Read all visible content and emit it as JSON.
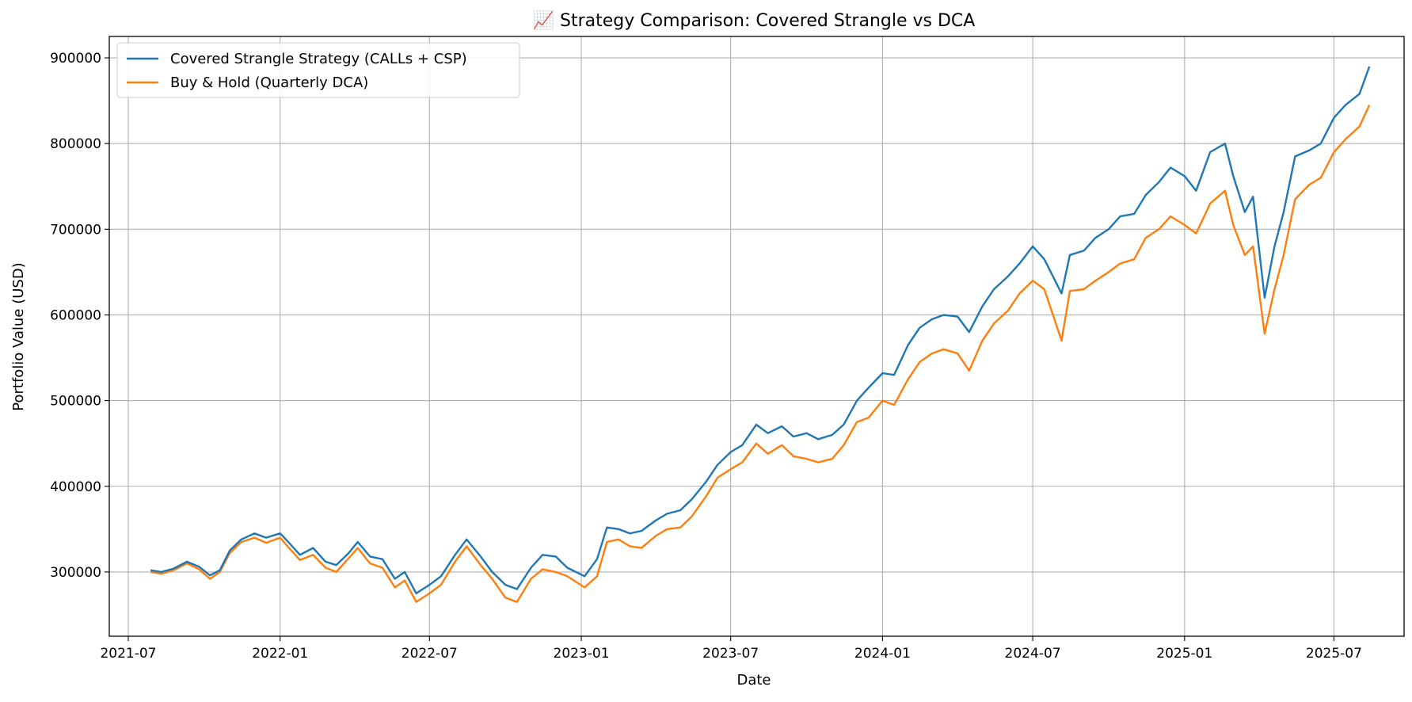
{
  "chart_data": {
    "type": "line",
    "title": "📈 Strategy Comparison: Covered Strangle vs DCA",
    "xlabel": "Date",
    "ylabel": "Portfolio Value (USD)",
    "x_ticks": [
      "2021-07",
      "2022-01",
      "2022-07",
      "2023-01",
      "2023-07",
      "2024-01",
      "2024-07",
      "2025-01",
      "2025-07"
    ],
    "y_ticks": [
      "300000",
      "400000",
      "500000",
      "600000",
      "700000",
      "800000",
      "900000"
    ],
    "xlim": [
      "2021-06-08",
      "2025-09-24"
    ],
    "ylim": [
      225000,
      925000
    ],
    "grid": true,
    "legend_position": "upper-left",
    "series": [
      {
        "name": "Covered Strangle Strategy (CALLs + CSP)",
        "color": "#1f77b4",
        "points": [
          [
            "2021-07-28",
            302000
          ],
          [
            "2021-08-10",
            300000
          ],
          [
            "2021-08-25",
            304000
          ],
          [
            "2021-09-10",
            312000
          ],
          [
            "2021-09-25",
            306000
          ],
          [
            "2021-10-08",
            296000
          ],
          [
            "2021-10-20",
            302000
          ],
          [
            "2021-11-01",
            325000
          ],
          [
            "2021-11-15",
            338000
          ],
          [
            "2021-12-01",
            345000
          ],
          [
            "2021-12-15",
            340000
          ],
          [
            "2022-01-01",
            345000
          ],
          [
            "2022-01-10",
            336000
          ],
          [
            "2022-01-25",
            320000
          ],
          [
            "2022-02-10",
            328000
          ],
          [
            "2022-02-25",
            312000
          ],
          [
            "2022-03-10",
            308000
          ],
          [
            "2022-03-25",
            322000
          ],
          [
            "2022-04-05",
            335000
          ],
          [
            "2022-04-20",
            318000
          ],
          [
            "2022-05-05",
            315000
          ],
          [
            "2022-05-20",
            292000
          ],
          [
            "2022-06-01",
            300000
          ],
          [
            "2022-06-15",
            275000
          ],
          [
            "2022-07-01",
            285000
          ],
          [
            "2022-07-15",
            295000
          ],
          [
            "2022-08-01",
            320000
          ],
          [
            "2022-08-15",
            338000
          ],
          [
            "2022-09-01",
            318000
          ],
          [
            "2022-09-15",
            300000
          ],
          [
            "2022-10-01",
            285000
          ],
          [
            "2022-10-15",
            280000
          ],
          [
            "2022-11-01",
            305000
          ],
          [
            "2022-11-15",
            320000
          ],
          [
            "2022-12-01",
            318000
          ],
          [
            "2022-12-15",
            305000
          ],
          [
            "2023-01-05",
            295000
          ],
          [
            "2023-01-20",
            315000
          ],
          [
            "2023-02-01",
            352000
          ],
          [
            "2023-02-15",
            350000
          ],
          [
            "2023-03-01",
            345000
          ],
          [
            "2023-03-15",
            348000
          ],
          [
            "2023-04-01",
            360000
          ],
          [
            "2023-04-15",
            368000
          ],
          [
            "2023-05-01",
            372000
          ],
          [
            "2023-05-15",
            385000
          ],
          [
            "2023-06-01",
            405000
          ],
          [
            "2023-06-15",
            425000
          ],
          [
            "2023-07-01",
            440000
          ],
          [
            "2023-07-15",
            448000
          ],
          [
            "2023-08-01",
            472000
          ],
          [
            "2023-08-15",
            462000
          ],
          [
            "2023-09-01",
            470000
          ],
          [
            "2023-09-15",
            458000
          ],
          [
            "2023-10-01",
            462000
          ],
          [
            "2023-10-15",
            455000
          ],
          [
            "2023-11-01",
            460000
          ],
          [
            "2023-11-15",
            472000
          ],
          [
            "2023-12-01",
            500000
          ],
          [
            "2023-12-15",
            515000
          ],
          [
            "2024-01-01",
            532000
          ],
          [
            "2024-01-15",
            530000
          ],
          [
            "2024-02-01",
            565000
          ],
          [
            "2024-02-15",
            585000
          ],
          [
            "2024-03-01",
            595000
          ],
          [
            "2024-03-15",
            600000
          ],
          [
            "2024-04-01",
            598000
          ],
          [
            "2024-04-15",
            580000
          ],
          [
            "2024-05-01",
            610000
          ],
          [
            "2024-05-15",
            630000
          ],
          [
            "2024-06-01",
            645000
          ],
          [
            "2024-06-15",
            660000
          ],
          [
            "2024-07-01",
            680000
          ],
          [
            "2024-07-15",
            665000
          ],
          [
            "2024-08-05",
            625000
          ],
          [
            "2024-08-15",
            670000
          ],
          [
            "2024-09-01",
            675000
          ],
          [
            "2024-09-15",
            690000
          ],
          [
            "2024-10-01",
            700000
          ],
          [
            "2024-10-15",
            715000
          ],
          [
            "2024-11-01",
            718000
          ],
          [
            "2024-11-15",
            740000
          ],
          [
            "2024-12-01",
            755000
          ],
          [
            "2024-12-15",
            772000
          ],
          [
            "2025-01-01",
            762000
          ],
          [
            "2025-01-15",
            745000
          ],
          [
            "2025-02-01",
            790000
          ],
          [
            "2025-02-19",
            800000
          ],
          [
            "2025-03-01",
            762000
          ],
          [
            "2025-03-15",
            720000
          ],
          [
            "2025-03-25",
            738000
          ],
          [
            "2025-04-08",
            620000
          ],
          [
            "2025-04-20",
            680000
          ],
          [
            "2025-05-01",
            720000
          ],
          [
            "2025-05-15",
            785000
          ],
          [
            "2025-06-01",
            792000
          ],
          [
            "2025-06-15",
            800000
          ],
          [
            "2025-07-01",
            830000
          ],
          [
            "2025-07-15",
            845000
          ],
          [
            "2025-08-01",
            858000
          ],
          [
            "2025-08-13",
            890000
          ]
        ]
      },
      {
        "name": "Buy & Hold (Quarterly DCA)",
        "color": "#ff7f0e",
        "points": [
          [
            "2021-07-28",
            300000
          ],
          [
            "2021-08-10",
            298000
          ],
          [
            "2021-08-25",
            302000
          ],
          [
            "2021-09-10",
            310000
          ],
          [
            "2021-09-25",
            303000
          ],
          [
            "2021-10-08",
            292000
          ],
          [
            "2021-10-20",
            300000
          ],
          [
            "2021-11-01",
            322000
          ],
          [
            "2021-11-15",
            335000
          ],
          [
            "2021-12-01",
            340000
          ],
          [
            "2021-12-15",
            334000
          ],
          [
            "2022-01-01",
            340000
          ],
          [
            "2022-01-10",
            330000
          ],
          [
            "2022-01-25",
            314000
          ],
          [
            "2022-02-10",
            320000
          ],
          [
            "2022-02-25",
            305000
          ],
          [
            "2022-03-10",
            300000
          ],
          [
            "2022-03-25",
            316000
          ],
          [
            "2022-04-05",
            328000
          ],
          [
            "2022-04-20",
            310000
          ],
          [
            "2022-05-05",
            305000
          ],
          [
            "2022-05-20",
            282000
          ],
          [
            "2022-06-01",
            290000
          ],
          [
            "2022-06-15",
            265000
          ],
          [
            "2022-07-01",
            275000
          ],
          [
            "2022-07-15",
            285000
          ],
          [
            "2022-08-01",
            312000
          ],
          [
            "2022-08-15",
            330000
          ],
          [
            "2022-09-01",
            308000
          ],
          [
            "2022-09-15",
            292000
          ],
          [
            "2022-10-01",
            270000
          ],
          [
            "2022-10-15",
            265000
          ],
          [
            "2022-11-01",
            292000
          ],
          [
            "2022-11-15",
            303000
          ],
          [
            "2022-12-01",
            300000
          ],
          [
            "2022-12-15",
            295000
          ],
          [
            "2023-01-05",
            282000
          ],
          [
            "2023-01-20",
            295000
          ],
          [
            "2023-02-01",
            335000
          ],
          [
            "2023-02-15",
            338000
          ],
          [
            "2023-03-01",
            330000
          ],
          [
            "2023-03-15",
            328000
          ],
          [
            "2023-04-01",
            342000
          ],
          [
            "2023-04-15",
            350000
          ],
          [
            "2023-05-01",
            352000
          ],
          [
            "2023-05-15",
            365000
          ],
          [
            "2023-06-01",
            388000
          ],
          [
            "2023-06-15",
            410000
          ],
          [
            "2023-07-01",
            420000
          ],
          [
            "2023-07-15",
            428000
          ],
          [
            "2023-08-01",
            450000
          ],
          [
            "2023-08-15",
            438000
          ],
          [
            "2023-09-01",
            448000
          ],
          [
            "2023-09-15",
            435000
          ],
          [
            "2023-10-01",
            432000
          ],
          [
            "2023-10-15",
            428000
          ],
          [
            "2023-11-01",
            432000
          ],
          [
            "2023-11-15",
            448000
          ],
          [
            "2023-12-01",
            475000
          ],
          [
            "2023-12-15",
            480000
          ],
          [
            "2024-01-01",
            500000
          ],
          [
            "2024-01-15",
            495000
          ],
          [
            "2024-02-01",
            525000
          ],
          [
            "2024-02-15",
            545000
          ],
          [
            "2024-03-01",
            555000
          ],
          [
            "2024-03-15",
            560000
          ],
          [
            "2024-04-01",
            555000
          ],
          [
            "2024-04-15",
            535000
          ],
          [
            "2024-05-01",
            570000
          ],
          [
            "2024-05-15",
            590000
          ],
          [
            "2024-06-01",
            605000
          ],
          [
            "2024-06-15",
            625000
          ],
          [
            "2024-07-01",
            640000
          ],
          [
            "2024-07-15",
            630000
          ],
          [
            "2024-08-05",
            570000
          ],
          [
            "2024-08-15",
            628000
          ],
          [
            "2024-09-01",
            630000
          ],
          [
            "2024-09-15",
            640000
          ],
          [
            "2024-10-01",
            650000
          ],
          [
            "2024-10-15",
            660000
          ],
          [
            "2024-11-01",
            665000
          ],
          [
            "2024-11-15",
            690000
          ],
          [
            "2024-12-01",
            700000
          ],
          [
            "2024-12-15",
            715000
          ],
          [
            "2025-01-01",
            705000
          ],
          [
            "2025-01-15",
            695000
          ],
          [
            "2025-02-01",
            730000
          ],
          [
            "2025-02-19",
            745000
          ],
          [
            "2025-03-01",
            705000
          ],
          [
            "2025-03-15",
            670000
          ],
          [
            "2025-03-25",
            680000
          ],
          [
            "2025-04-08",
            578000
          ],
          [
            "2025-04-20",
            630000
          ],
          [
            "2025-05-01",
            670000
          ],
          [
            "2025-05-15",
            735000
          ],
          [
            "2025-06-01",
            752000
          ],
          [
            "2025-06-15",
            760000
          ],
          [
            "2025-07-01",
            790000
          ],
          [
            "2025-07-15",
            805000
          ],
          [
            "2025-08-01",
            820000
          ],
          [
            "2025-08-13",
            845000
          ]
        ]
      }
    ]
  }
}
